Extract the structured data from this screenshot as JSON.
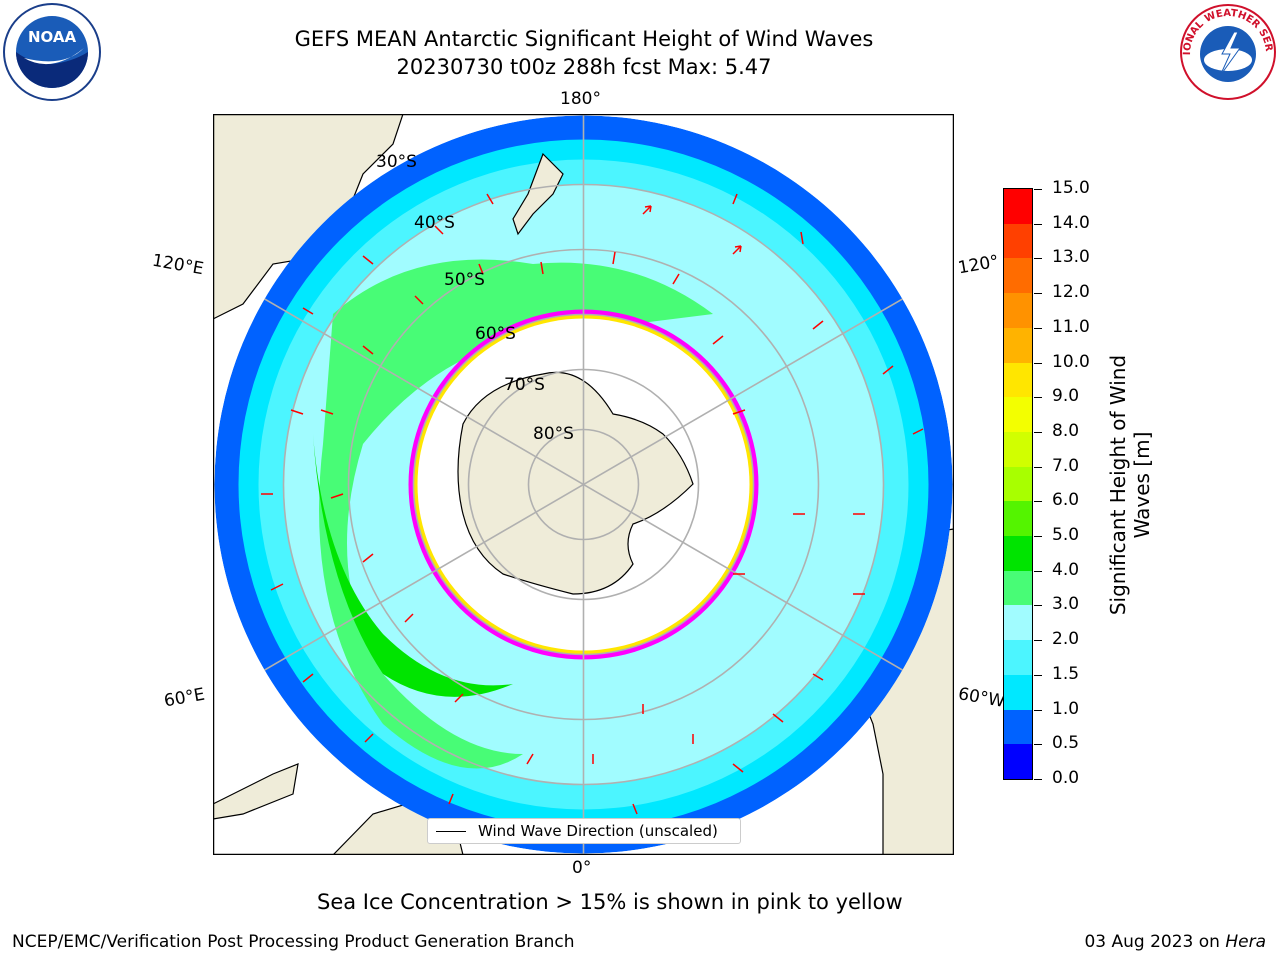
{
  "title": {
    "line1": "GEFS MEAN Antarctic Significant Height of Wind Waves",
    "line2": "20230730 t00z 288h fcst   Max: 5.47"
  },
  "logos": {
    "left": "noaa-logo",
    "right": "national-weather-service-logo",
    "left_text": "NOAA",
    "right_text": "NATIONAL WEATHER SERVICE"
  },
  "map": {
    "projection": "south-polar-stereographic",
    "lon_labels": {
      "top": "180°",
      "bottom": "0°",
      "upper_left": "120°E",
      "upper_right": "120°",
      "lower_left": "60°E",
      "lower_right": "60°W"
    },
    "lat_labels": [
      "30°S",
      "40°S",
      "50°S",
      "60°S",
      "70°S",
      "80°S"
    ],
    "colors": {
      "land": "#efecd9",
      "ice": "#ff00ff",
      "grid": "#b0b0b0",
      "arrow": "#ff0000"
    }
  },
  "colorbar": {
    "label_line1": "Significant Height of Wind",
    "label_line2": "Waves [m]",
    "ticks": [
      "15.0",
      "14.0",
      "13.0",
      "12.0",
      "11.0",
      "10.0",
      "9.0",
      "8.0",
      "7.0",
      "6.0",
      "5.0",
      "4.0",
      "3.0",
      "2.0",
      "1.5",
      "1.0",
      "0.5",
      "0.0"
    ],
    "colors": [
      "#0000ff",
      "#0062ff",
      "#00e8ff",
      "#4cf5ff",
      "#a1fcff",
      "#48fc76",
      "#00e400",
      "#54f400",
      "#a8ff00",
      "#d1ff00",
      "#f3ff00",
      "#ffe600",
      "#ffb300",
      "#ff9200",
      "#ff6c00",
      "#ff4000",
      "#ff0000"
    ]
  },
  "legend": {
    "label": "Wind Wave Direction (unscaled)"
  },
  "note": "Sea Ice Concentration > 15% is shown in pink to yellow",
  "footer": {
    "left": "NCEP/EMC/Verification Post Processing Product Generation Branch",
    "right_prefix": "03 Aug 2023 on ",
    "right_host": "Hera"
  }
}
